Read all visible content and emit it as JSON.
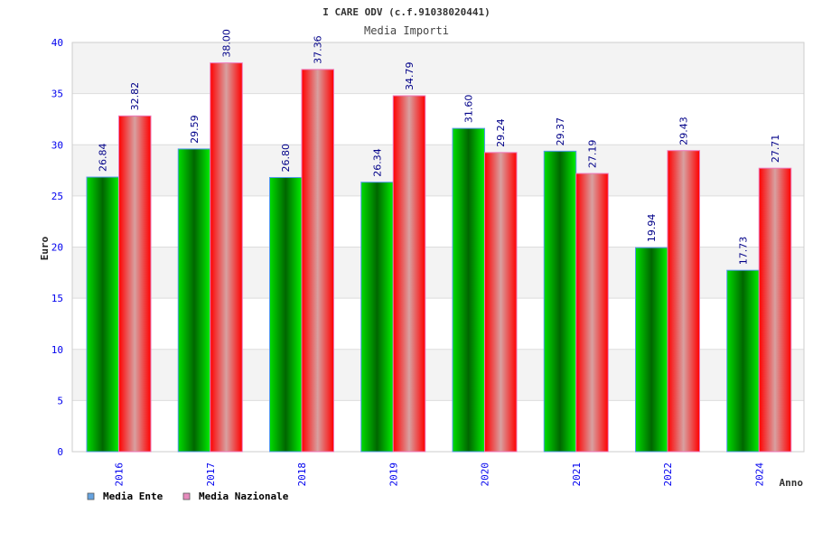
{
  "chart_data": {
    "type": "bar",
    "title": "I CARE ODV (c.f.91038020441)",
    "subtitle": "Media Importi",
    "xlabel": "Anno",
    "ylabel": "Euro",
    "ylim": [
      0,
      40
    ],
    "yticks": [
      "0",
      "5",
      "10",
      "15",
      "20",
      "25",
      "30",
      "35",
      "40"
    ],
    "categories": [
      "2016",
      "2017",
      "2018",
      "2019",
      "2020",
      "2021",
      "2022",
      "2024"
    ],
    "series": [
      {
        "name": "Media Ente",
        "color": "#00cc00",
        "legend_color": "#66a3e0",
        "values": [
          26.84,
          29.59,
          26.8,
          26.34,
          31.6,
          29.37,
          19.94,
          17.73
        ],
        "labels": [
          "26.84",
          "29.59",
          "26.80",
          "26.34",
          "31.60",
          "29.37",
          "19.94",
          "17.73"
        ]
      },
      {
        "name": "Media Nazionale",
        "color": "#ff0000",
        "legend_color": "#e78bbd",
        "values": [
          32.82,
          38.0,
          37.36,
          34.79,
          29.24,
          27.19,
          29.43,
          27.71
        ],
        "labels": [
          "32.82",
          "38.00",
          "37.36",
          "34.79",
          "29.24",
          "27.19",
          "29.43",
          "27.71"
        ]
      }
    ],
    "grid": true,
    "legend": "bottom-left"
  }
}
